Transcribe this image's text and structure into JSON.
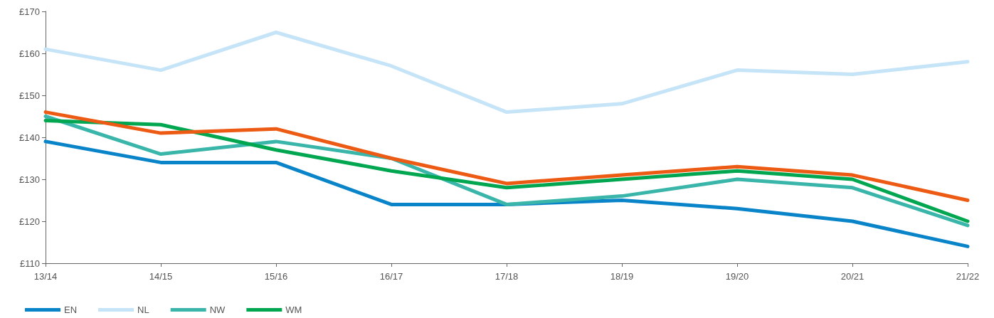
{
  "chart_data": {
    "type": "line",
    "categories": [
      "13/14",
      "14/15",
      "15/16",
      "16/17",
      "17/18",
      "18/19",
      "19/20",
      "20/21",
      "21/22"
    ],
    "series": [
      {
        "name": "EN",
        "color": "#0a84c8",
        "values": [
          139,
          134,
          134,
          124,
          124,
          125,
          123,
          120,
          114
        ]
      },
      {
        "name": "NL",
        "color": "#c5e4f7",
        "values": [
          161,
          156,
          165,
          157,
          146,
          148,
          156,
          155,
          158
        ]
      },
      {
        "name": "NW",
        "color": "#3ab5aa",
        "values": [
          145,
          136,
          139,
          135,
          124,
          126,
          130,
          128,
          119
        ]
      },
      {
        "name": "WM",
        "color": "#00a650",
        "values": [
          144,
          143,
          137,
          132,
          128,
          130,
          132,
          130,
          120
        ]
      },
      {
        "color": "#ec5a13",
        "values": [
          146,
          141,
          142,
          135,
          129,
          131,
          133,
          131,
          125
        ]
      }
    ],
    "ylim": [
      110,
      170
    ],
    "yticks": [
      {
        "value": 110,
        "label": "£110"
      },
      {
        "value": 120,
        "label": "£120"
      },
      {
        "value": 130,
        "label": "£130"
      },
      {
        "value": 140,
        "label": "£140"
      },
      {
        "value": 150,
        "label": "£150"
      },
      {
        "value": 160,
        "label": "£160"
      },
      {
        "value": 170,
        "label": "£170"
      }
    ],
    "grid": false,
    "legend": "bottom left",
    "marker": "none",
    "line_style": "solid"
  }
}
